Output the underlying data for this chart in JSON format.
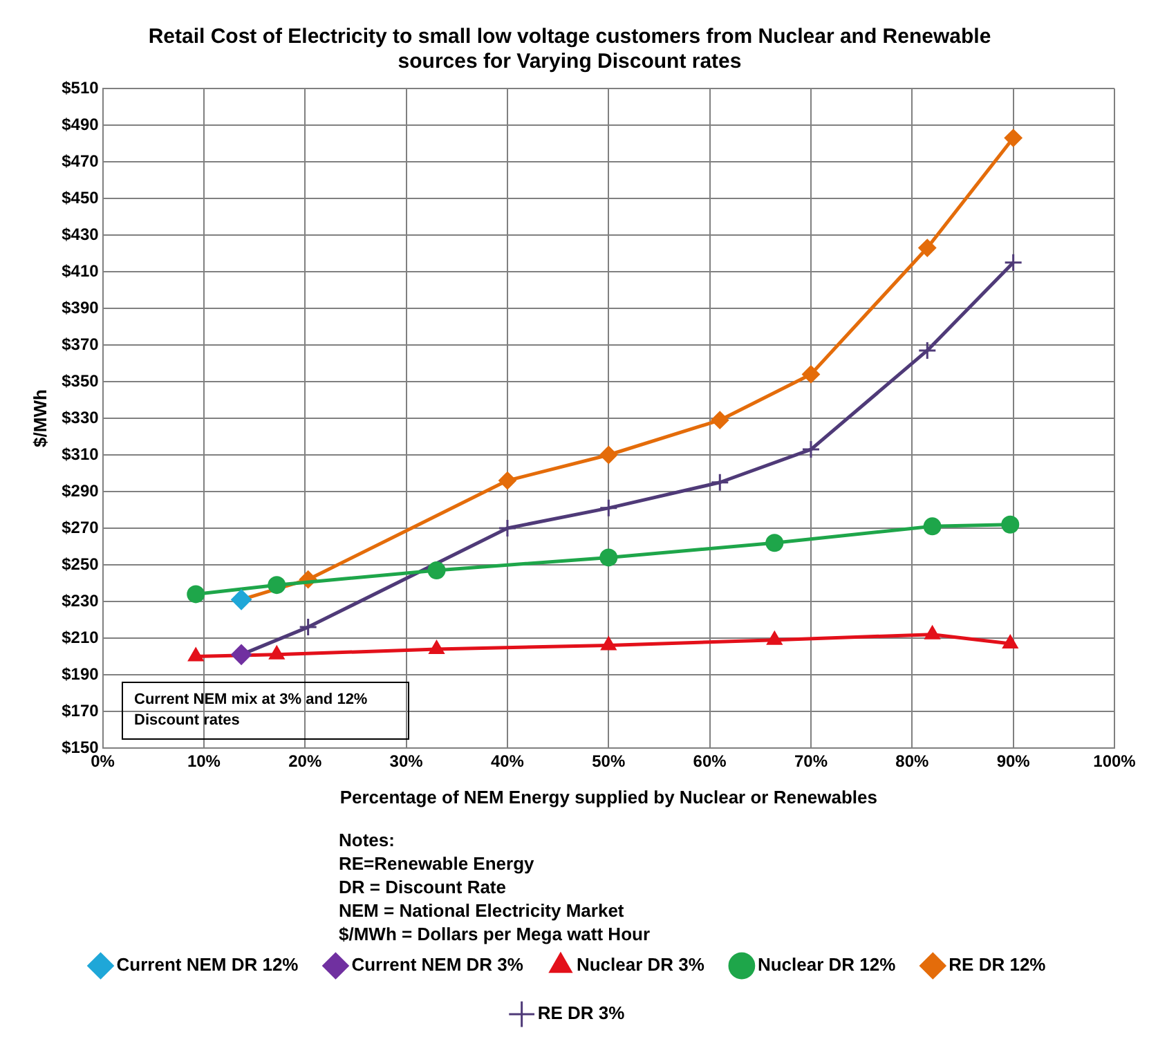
{
  "chart_data": {
    "type": "line",
    "title": "Retail Cost of Electricity to small low voltage customers from Nuclear and Renewable sources for Varying Discount rates",
    "xlabel": "Percentage of NEM Energy supplied by Nuclear or Renewables",
    "ylabel": "$/MWh",
    "xlim": [
      0,
      100
    ],
    "xticks": [
      {
        "value": 0,
        "label": "0%"
      },
      {
        "value": 10,
        "label": "10%"
      },
      {
        "value": 20,
        "label": "20%"
      },
      {
        "value": 30,
        "label": "30%"
      },
      {
        "value": 40,
        "label": "40%"
      },
      {
        "value": 50,
        "label": "50%"
      },
      {
        "value": 60,
        "label": "60%"
      },
      {
        "value": 70,
        "label": "70%"
      },
      {
        "value": 80,
        "label": "80%"
      },
      {
        "value": 90,
        "label": "90%"
      },
      {
        "value": 100,
        "label": "100%"
      }
    ],
    "ylim": [
      150,
      510
    ],
    "yticks": [
      {
        "value": 150,
        "label": "$150"
      },
      {
        "value": 170,
        "label": "$170"
      },
      {
        "value": 190,
        "label": "$190"
      },
      {
        "value": 210,
        "label": "$210"
      },
      {
        "value": 230,
        "label": "$230"
      },
      {
        "value": 250,
        "label": "$250"
      },
      {
        "value": 270,
        "label": "$270"
      },
      {
        "value": 290,
        "label": "$290"
      },
      {
        "value": 310,
        "label": "$310"
      },
      {
        "value": 330,
        "label": "$330"
      },
      {
        "value": 350,
        "label": "$350"
      },
      {
        "value": 370,
        "label": "$370"
      },
      {
        "value": 390,
        "label": "$390"
      },
      {
        "value": 410,
        "label": "$410"
      },
      {
        "value": 430,
        "label": "$430"
      },
      {
        "value": 450,
        "label": "$450"
      },
      {
        "value": 470,
        "label": "$470"
      },
      {
        "value": 490,
        "label": "$490"
      },
      {
        "value": 510,
        "label": "$510"
      }
    ],
    "grid": true,
    "legend": "bottom",
    "series": [
      {
        "name": "Nuclear DR 3%",
        "type": "line",
        "marker": "triangle",
        "color": "#e3101a",
        "x": [
          9.2,
          17.2,
          33,
          50,
          66.4,
          82,
          89.7
        ],
        "values": [
          200,
          201,
          204,
          206,
          209,
          212,
          207
        ]
      },
      {
        "name": "Nuclear DR 12%",
        "type": "line",
        "marker": "circle",
        "color": "#1ea64a",
        "x": [
          9.2,
          17.2,
          33,
          50,
          66.4,
          82,
          89.7
        ],
        "values": [
          234,
          239,
          247,
          254,
          262,
          271,
          272
        ]
      },
      {
        "name": "RE DR 12%",
        "type": "line",
        "marker": "diamond",
        "color": "#e46c0a",
        "x": [
          13.7,
          20.3,
          40,
          50,
          61,
          70,
          81.5,
          90
        ],
        "values": [
          231,
          242,
          296,
          310,
          329,
          354,
          423,
          483
        ]
      },
      {
        "name": "RE DR 3%",
        "type": "line",
        "marker": "cross",
        "color": "#4f3a78",
        "x": [
          13.7,
          20.3,
          40,
          50,
          61,
          70,
          81.5,
          90
        ],
        "values": [
          201,
          216,
          270,
          281,
          295,
          313,
          367,
          415
        ]
      },
      {
        "name": "Current NEM DR 12%",
        "type": "scatter",
        "marker": "diamond",
        "color": "#1fa7d8",
        "x": [
          13.7
        ],
        "values": [
          231
        ]
      },
      {
        "name": "Current NEM DR 3%",
        "type": "scatter",
        "marker": "diamond",
        "color": "#7030a0",
        "x": [
          13.7
        ],
        "values": [
          201
        ]
      }
    ],
    "annotations": [
      "Current NEM mix at 3% and 12% Discount rates",
      "Notes:",
      "RE=Renewable Energy",
      "DR = Discount Rate",
      "NEM = National Electricity Market",
      "$/MWh = Dollars per Mega watt Hour"
    ]
  }
}
